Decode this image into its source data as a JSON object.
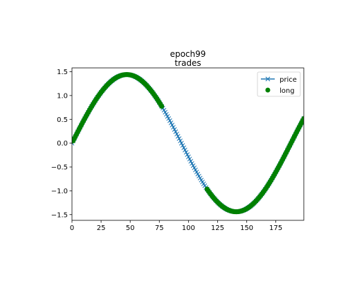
{
  "chart_data": {
    "type": "line",
    "title_lines": [
      "epoch99",
      "trades"
    ],
    "xlim": [
      0,
      199
    ],
    "ylim": [
      -1.62,
      1.58
    ],
    "x_ticks": [
      0,
      25,
      50,
      75,
      100,
      125,
      150,
      175
    ],
    "y_ticks": [
      -1.5,
      -1.0,
      -0.5,
      0.0,
      0.5,
      1.0,
      1.5
    ],
    "x_tick_labels": [
      "0",
      "25",
      "50",
      "75",
      "100",
      "125",
      "150",
      "175"
    ],
    "y_tick_labels": [
      "−1.5",
      "−1.0",
      "−0.5",
      "0.0",
      "0.5",
      "1.0",
      "1.5"
    ],
    "grid": false,
    "legend_placement": "top-right",
    "series": [
      {
        "name": "price",
        "kind": "line-with-x-markers",
        "color": "#1f77b4",
        "function": "1.44*sin(2*pi*x/188)",
        "x_start": 0,
        "x_end": 199,
        "x_step": 1
      },
      {
        "name": "long",
        "kind": "circle-markers",
        "color": "#008000",
        "x_ranges": [
          [
            1,
            77
          ],
          [
            116,
            199
          ]
        ]
      }
    ]
  }
}
